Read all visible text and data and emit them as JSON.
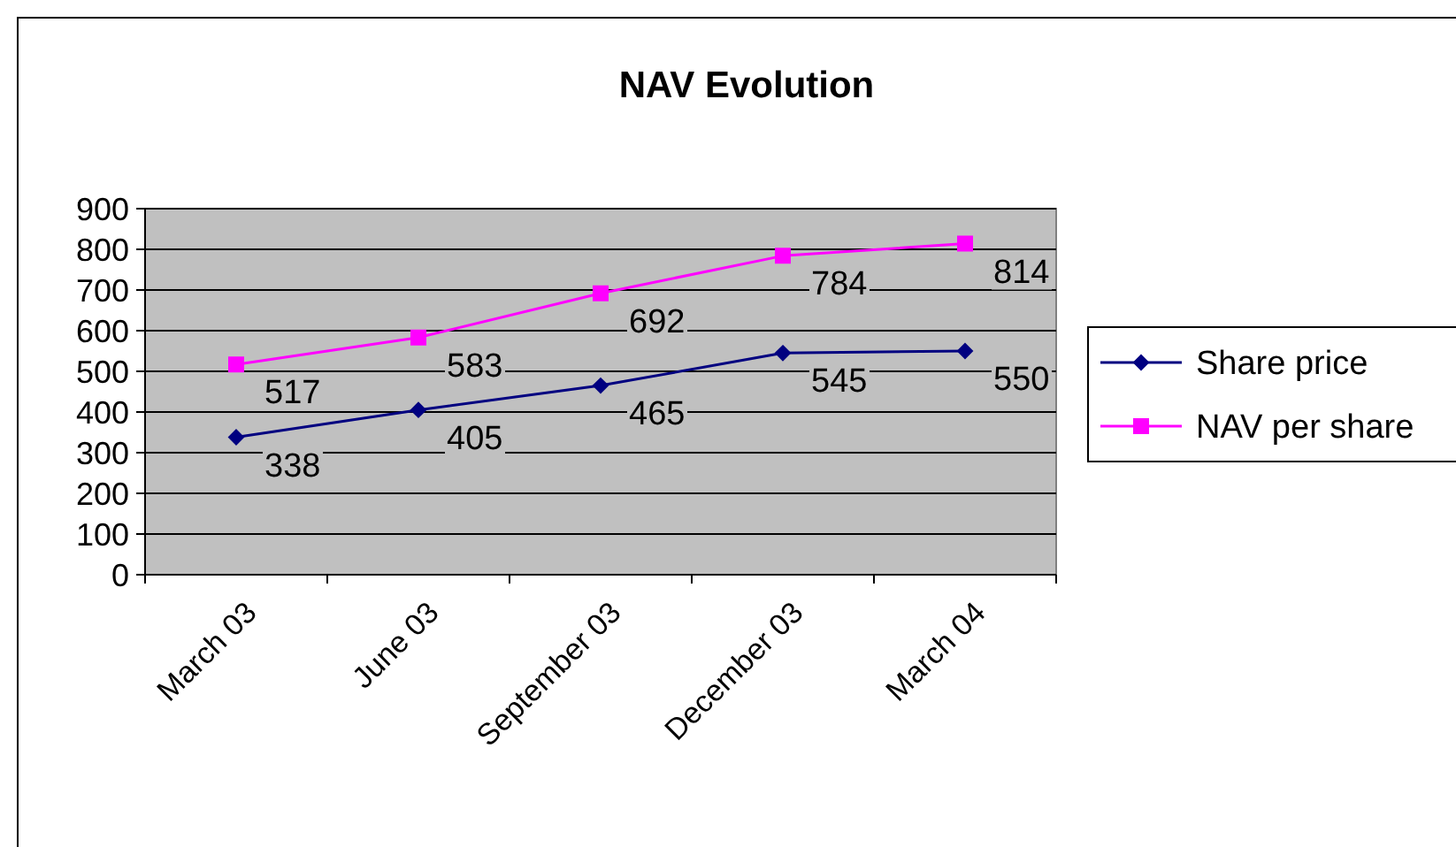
{
  "chart_data": {
    "type": "line",
    "title": "NAV Evolution",
    "categories": [
      "March 03",
      "June 03",
      "September 03",
      "December 03",
      "March 04"
    ],
    "series": [
      {
        "name": "Share price",
        "color": "#000080",
        "values": [
          338,
          405,
          465,
          545,
          550
        ],
        "marker": "diamond"
      },
      {
        "name": "NAV per share",
        "color": "#ff00ff",
        "values": [
          517,
          583,
          692,
          784,
          814
        ],
        "marker": "square"
      }
    ],
    "ylim": [
      0,
      900
    ],
    "yticks": [
      0,
      100,
      200,
      300,
      400,
      500,
      600,
      700,
      800,
      900
    ],
    "grid": "y",
    "legend": "right",
    "data_labels": true
  }
}
